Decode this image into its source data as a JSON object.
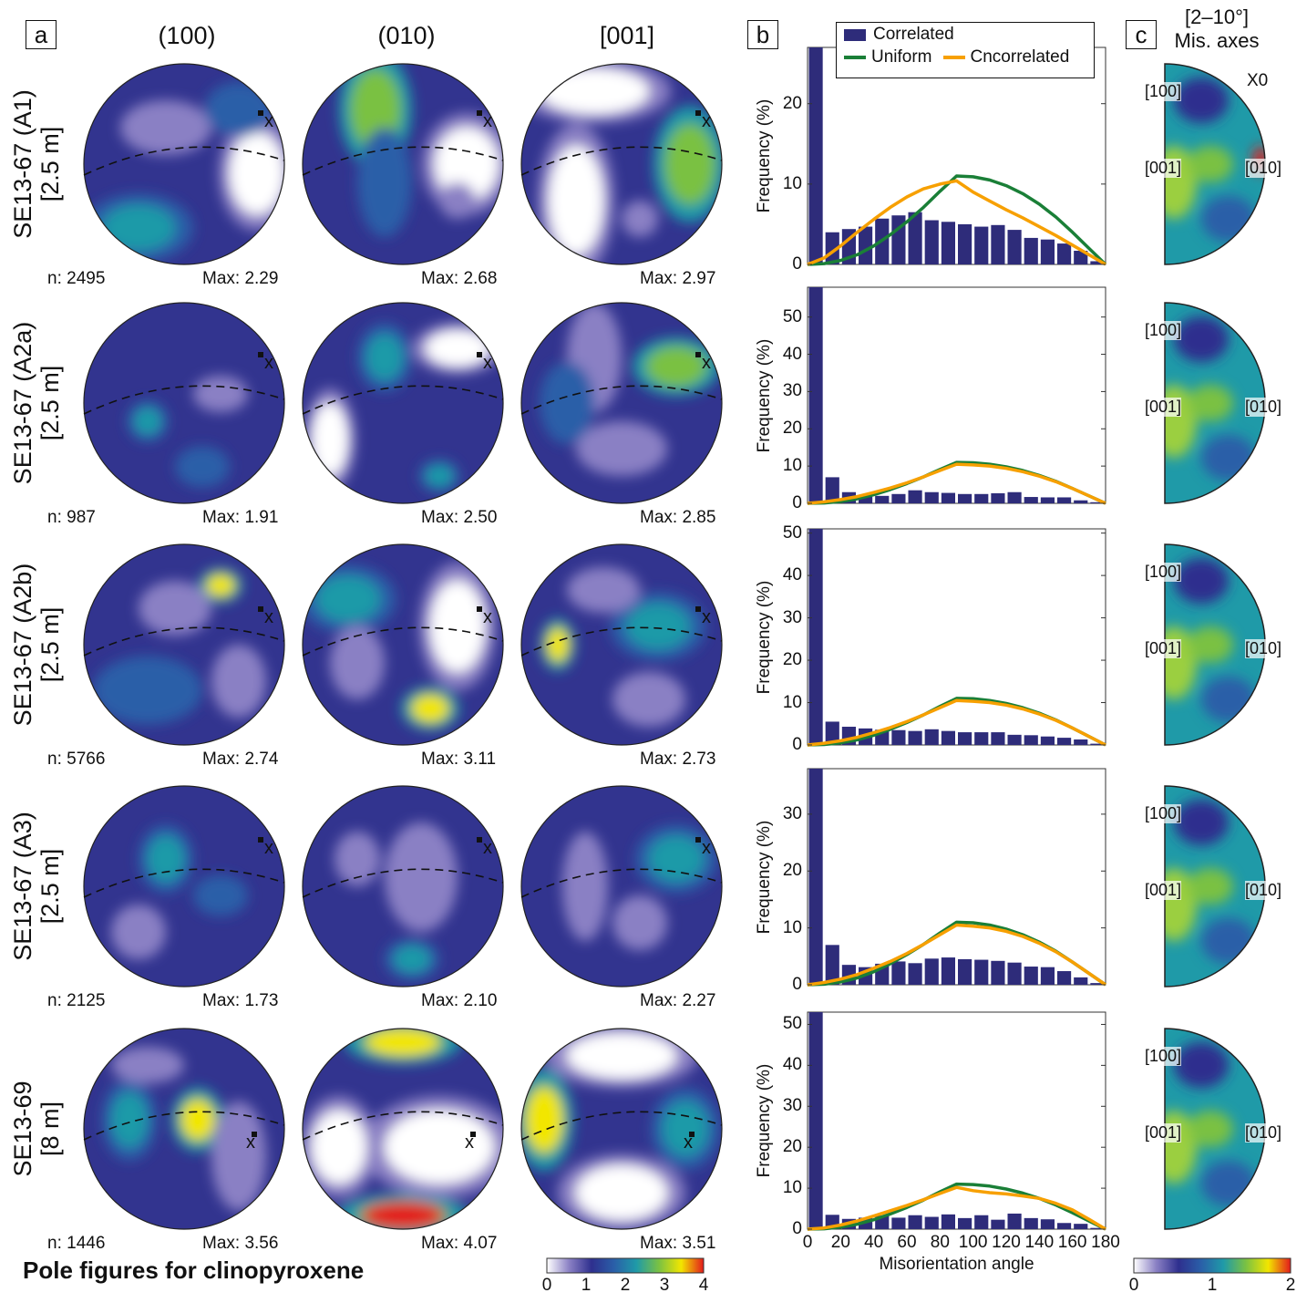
{
  "panels": {
    "a": "a",
    "b": "b",
    "c": "c"
  },
  "columns": [
    "(100)",
    "(010)",
    "[001]"
  ],
  "title": "Pole figures for clinopyroxene",
  "rows": [
    {
      "label1": "SE13-67 (A1)",
      "label2": "[2.5 m]",
      "n": "n: 2495",
      "max": [
        "Max: 2.29",
        "Max: 2.68",
        "Max: 2.97"
      ]
    },
    {
      "label1": "SE13-67 (A2a)",
      "label2": "[2.5 m]",
      "n": "n: 987",
      "max": [
        "Max: 1.91",
        "Max: 2.50",
        "Max: 2.85"
      ]
    },
    {
      "label1": "SE13-67 (A2b)",
      "label2": "[2.5 m]",
      "n": "n: 5766",
      "max": [
        "Max: 2.74",
        "Max: 3.11",
        "Max: 2.73"
      ]
    },
    {
      "label1": "SE13-67 (A3)",
      "label2": "[2.5 m]",
      "n": "n: 2125",
      "max": [
        "Max: 1.73",
        "Max: 2.10",
        "Max: 2.27"
      ]
    },
    {
      "label1": "SE13-69",
      "label2": "[8 m]",
      "n": "n: 1446",
      "max": [
        "Max: 3.56",
        "Max: 4.07",
        "Max: 3.51"
      ]
    }
  ],
  "pole_marker": "x",
  "colorbar_a": {
    "ticks": [
      "0",
      "1",
      "2",
      "3",
      "4"
    ]
  },
  "colorbar_c": {
    "ticks": [
      "0",
      "1",
      "2"
    ]
  },
  "mis_axes": {
    "title1": "[2–10°]",
    "title2": "Mis. axes",
    "x0": "X0",
    "labels": [
      "[100]",
      "[001]",
      "[010]"
    ]
  },
  "colors": {
    "correlated": "#2e2c7a",
    "uniform": "#1a7f37",
    "uncorrelated": "#f7a000"
  },
  "chart_data": [
    {
      "type": "bar",
      "xlabel": "",
      "ylabel": "Frequency (%)",
      "ylim": [
        0,
        27
      ],
      "yticks": [
        0,
        10,
        20
      ],
      "xlim": [
        0,
        180
      ],
      "legend": {
        "placement": "top",
        "entries": [
          "Correlated",
          "Uniform",
          "Cncorrelated"
        ]
      },
      "bin_starts": [
        0,
        10,
        20,
        30,
        40,
        50,
        60,
        70,
        80,
        90,
        100,
        110,
        120,
        130,
        140,
        150,
        160,
        170
      ],
      "series": [
        {
          "name": "Correlated",
          "values": [
            27,
            4.0,
            4.4,
            4.7,
            5.7,
            6.1,
            6.5,
            5.5,
            5.3,
            5.0,
            4.7,
            4.9,
            4.3,
            3.3,
            3.1,
            2.6,
            1.7,
            0.4
          ]
        }
      ],
      "lines_x": [
        0,
        10,
        20,
        30,
        40,
        50,
        60,
        70,
        80,
        90,
        100,
        110,
        120,
        130,
        140,
        150,
        160,
        170,
        180
      ],
      "lines": [
        {
          "name": "Uniform",
          "values": [
            0,
            0.1,
            0.5,
            1.2,
            2.3,
            3.7,
            5.3,
            7.1,
            9.1,
            11.0,
            10.9,
            10.5,
            9.8,
            8.8,
            7.5,
            5.9,
            4.0,
            2.0,
            0
          ]
        },
        {
          "name": "Cncorrelated",
          "values": [
            0,
            0.8,
            2.3,
            4.0,
            5.6,
            7.1,
            8.4,
            9.4,
            10.0,
            10.4,
            9.0,
            7.9,
            6.8,
            5.8,
            4.7,
            3.6,
            2.4,
            1.2,
            0
          ]
        }
      ]
    },
    {
      "type": "bar",
      "ylabel": "Frequency (%)",
      "ylim": [
        0,
        58
      ],
      "yticks": [
        0,
        10,
        20,
        30,
        40,
        50
      ],
      "xlim": [
        0,
        180
      ],
      "series": [
        {
          "name": "Correlated",
          "values": [
            58,
            7.0,
            3.0,
            2.2,
            2.0,
            2.5,
            3.5,
            3.0,
            2.8,
            2.5,
            2.5,
            2.7,
            3.0,
            1.7,
            1.6,
            1.6,
            0.8,
            0.3
          ]
        }
      ],
      "lines_x": [
        0,
        10,
        20,
        30,
        40,
        50,
        60,
        70,
        80,
        90,
        100,
        110,
        120,
        130,
        140,
        150,
        160,
        170,
        180
      ],
      "lines": [
        {
          "name": "Uniform",
          "values": [
            0,
            0.1,
            0.5,
            1.2,
            2.3,
            3.7,
            5.3,
            7.1,
            9.1,
            11.0,
            10.9,
            10.5,
            9.8,
            8.8,
            7.5,
            5.9,
            4.0,
            2.0,
            0
          ]
        },
        {
          "name": "Cncorrelated",
          "values": [
            0,
            0.4,
            1.0,
            1.8,
            2.9,
            4.1,
            5.5,
            7.1,
            8.8,
            10.5,
            10.3,
            10.0,
            9.4,
            8.5,
            7.3,
            5.8,
            4.0,
            2.0,
            0
          ]
        }
      ]
    },
    {
      "type": "bar",
      "ylabel": "Frequency (%)",
      "ylim": [
        0,
        51
      ],
      "yticks": [
        0,
        10,
        20,
        30,
        40,
        50
      ],
      "xlim": [
        0,
        180
      ],
      "series": [
        {
          "name": "Correlated",
          "values": [
            51,
            5.5,
            4.3,
            3.9,
            3.6,
            3.5,
            3.3,
            3.7,
            3.3,
            3.0,
            3.0,
            3.0,
            2.4,
            2.3,
            2.0,
            1.7,
            1.3,
            0.3
          ]
        }
      ],
      "lines_x": [
        0,
        10,
        20,
        30,
        40,
        50,
        60,
        70,
        80,
        90,
        100,
        110,
        120,
        130,
        140,
        150,
        160,
        170,
        180
      ],
      "lines": [
        {
          "name": "Uniform",
          "values": [
            0,
            0.1,
            0.5,
            1.2,
            2.3,
            3.7,
            5.3,
            7.1,
            9.1,
            11.0,
            10.9,
            10.5,
            9.8,
            8.8,
            7.5,
            5.9,
            4.0,
            2.0,
            0
          ]
        },
        {
          "name": "Cncorrelated",
          "values": [
            0,
            0.4,
            1.0,
            1.8,
            2.9,
            4.1,
            5.5,
            7.1,
            8.8,
            10.5,
            10.3,
            10.0,
            9.4,
            8.5,
            7.3,
            5.8,
            4.0,
            2.0,
            0
          ]
        }
      ]
    },
    {
      "type": "bar",
      "ylabel": "Frequency (%)",
      "ylim": [
        0,
        38
      ],
      "yticks": [
        0,
        10,
        20,
        30
      ],
      "xlim": [
        0,
        180
      ],
      "series": [
        {
          "name": "Correlated",
          "values": [
            38,
            7.0,
            3.5,
            3.1,
            3.7,
            4.1,
            3.8,
            4.6,
            4.8,
            4.5,
            4.4,
            4.2,
            3.9,
            3.2,
            3.1,
            2.4,
            1.3,
            0.3
          ]
        }
      ],
      "lines_x": [
        0,
        10,
        20,
        30,
        40,
        50,
        60,
        70,
        80,
        90,
        100,
        110,
        120,
        130,
        140,
        150,
        160,
        170,
        180
      ],
      "lines": [
        {
          "name": "Uniform",
          "values": [
            0,
            0.1,
            0.5,
            1.2,
            2.3,
            3.7,
            5.3,
            7.1,
            9.1,
            11.0,
            10.9,
            10.5,
            9.8,
            8.8,
            7.5,
            5.9,
            4.0,
            2.0,
            0
          ]
        },
        {
          "name": "Cncorrelated",
          "values": [
            0,
            0.4,
            1.0,
            1.8,
            2.9,
            4.1,
            5.5,
            7.1,
            8.8,
            10.5,
            10.3,
            10.0,
            9.4,
            8.5,
            7.3,
            5.8,
            4.0,
            2.0,
            0
          ]
        }
      ]
    },
    {
      "type": "bar",
      "xlabel": "Misorientation angle",
      "ylabel": "Frequency (%)",
      "ylim": [
        0,
        53
      ],
      "yticks": [
        0,
        10,
        20,
        30,
        40,
        50
      ],
      "xlim": [
        0,
        180
      ],
      "xticks": [
        0,
        20,
        40,
        60,
        80,
        100,
        120,
        140,
        160,
        180
      ],
      "series": [
        {
          "name": "Correlated",
          "values": [
            53,
            3.5,
            2.5,
            2.8,
            3.3,
            2.8,
            3.4,
            3.0,
            3.6,
            2.7,
            3.4,
            2.3,
            3.8,
            2.7,
            2.4,
            1.5,
            1.3,
            0.3
          ]
        }
      ],
      "lines_x": [
        0,
        10,
        20,
        30,
        40,
        50,
        60,
        70,
        80,
        90,
        100,
        110,
        120,
        130,
        140,
        150,
        160,
        170,
        180
      ],
      "lines": [
        {
          "name": "Uniform",
          "values": [
            0,
            0.1,
            0.5,
            1.2,
            2.3,
            3.7,
            5.3,
            7.1,
            9.1,
            11.0,
            10.9,
            10.5,
            9.8,
            8.8,
            7.5,
            5.9,
            4.0,
            2.0,
            0
          ]
        },
        {
          "name": "Cncorrelated",
          "values": [
            0,
            0.3,
            1.0,
            2.0,
            3.2,
            4.5,
            5.8,
            7.2,
            8.7,
            10.2,
            9.4,
            8.9,
            8.6,
            8.1,
            7.5,
            6.3,
            4.7,
            2.4,
            0
          ]
        }
      ]
    }
  ]
}
